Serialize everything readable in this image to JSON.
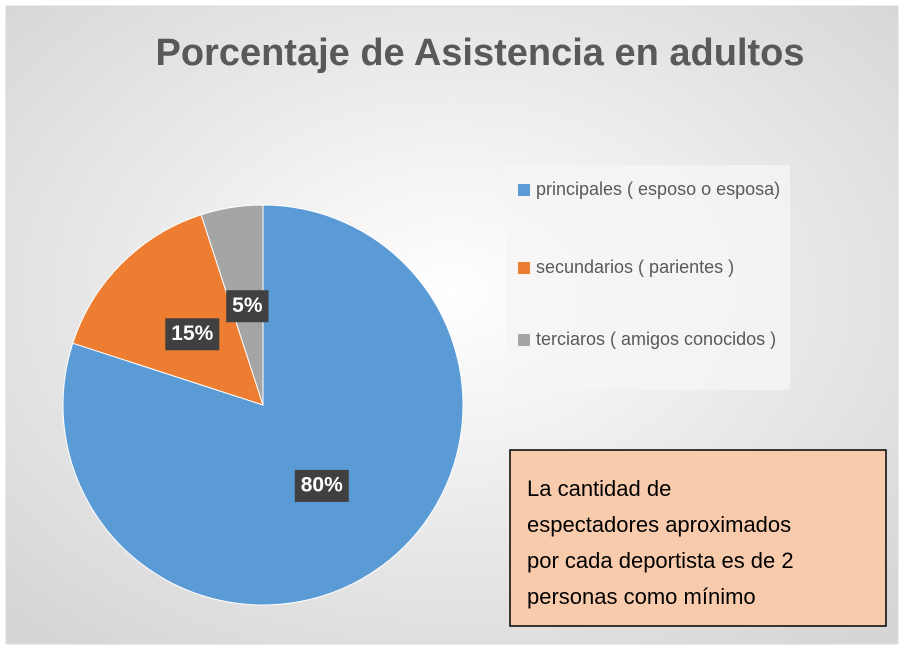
{
  "chart_data": {
    "type": "pie",
    "title": "Porcentaje de Asistencia en adultos",
    "categories": [
      "principales ( esposo o esposa)",
      "secundarios ( parientes )",
      "terciaros ( amigos conocidos )"
    ],
    "values": [
      80,
      15,
      5
    ],
    "value_labels": [
      "80%",
      "15%",
      "5%"
    ],
    "colors": [
      "#5b9bd5",
      "#ed7d31",
      "#a5a5a5"
    ],
    "legend": "right",
    "annotation": [
      "La cantidad de",
      "espectadores aproximados",
      "por cada deportista es de 2",
      "personas como mínimo"
    ]
  }
}
